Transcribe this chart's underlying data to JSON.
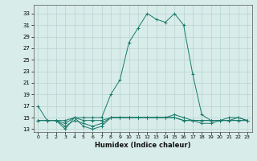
{
  "xlabel": "Humidex (Indice chaleur)",
  "background_color": "#d8ecea",
  "grid_color": "#b8d4d0",
  "line_color": "#1a7a6a",
  "xlim": [
    -0.5,
    23.5
  ],
  "ylim": [
    12.5,
    34.5
  ],
  "yticks": [
    13,
    15,
    17,
    19,
    21,
    23,
    25,
    27,
    29,
    31,
    33
  ],
  "xticks": [
    0,
    1,
    2,
    3,
    4,
    5,
    6,
    7,
    8,
    9,
    10,
    11,
    12,
    13,
    14,
    15,
    16,
    17,
    18,
    19,
    20,
    21,
    22,
    23
  ],
  "series": [
    [
      17.0,
      14.5,
      14.5,
      14.5,
      15.0,
      15.0,
      15.0,
      15.0,
      19.0,
      21.5,
      28.0,
      30.5,
      33.0,
      32.0,
      31.5,
      33.0,
      31.0,
      22.5,
      15.5,
      14.5,
      14.5,
      15.0,
      15.0,
      14.5
    ],
    [
      14.5,
      14.5,
      14.5,
      13.0,
      15.0,
      13.5,
      13.0,
      13.5,
      15.0,
      15.0,
      15.0,
      15.0,
      15.0,
      15.0,
      15.0,
      15.0,
      14.5,
      14.5,
      14.0,
      14.0,
      14.5,
      14.5,
      15.0,
      14.5
    ],
    [
      14.5,
      14.5,
      14.5,
      13.5,
      14.5,
      14.0,
      13.5,
      14.0,
      15.0,
      15.0,
      15.0,
      15.0,
      15.0,
      15.0,
      15.0,
      15.0,
      14.5,
      14.5,
      14.5,
      14.5,
      14.5,
      14.5,
      14.5,
      14.5
    ],
    [
      14.5,
      14.5,
      14.5,
      14.0,
      15.0,
      14.5,
      14.5,
      14.5,
      15.0,
      15.0,
      15.0,
      15.0,
      15.0,
      15.0,
      15.0,
      15.5,
      15.0,
      14.5,
      14.5,
      14.5,
      14.5,
      14.5,
      14.5,
      14.5
    ]
  ]
}
